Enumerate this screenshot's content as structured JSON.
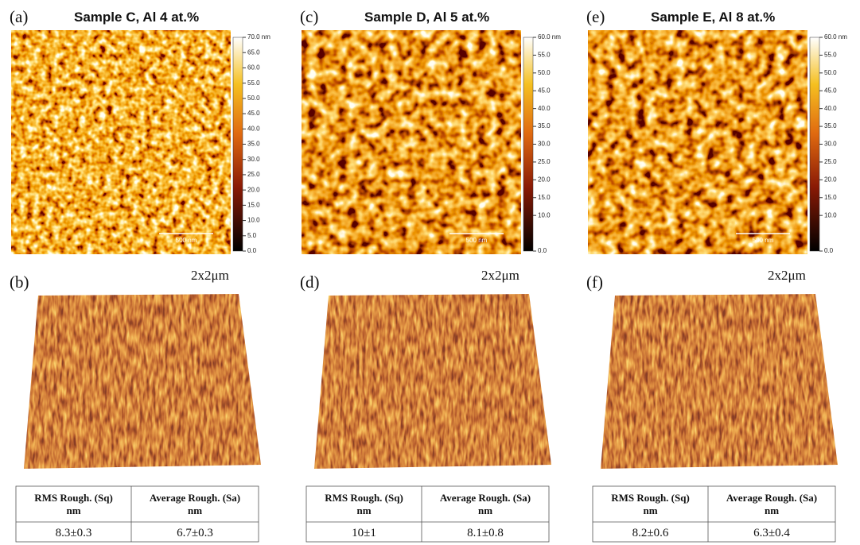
{
  "panels": [
    {
      "top_label": "(a)",
      "title": "Sample C, Al 4 at.%",
      "colorbar_ticks": [
        {
          "value": 70,
          "label": "70.0 nm"
        },
        {
          "value": 65,
          "label": "65.0"
        },
        {
          "value": 60,
          "label": "60.0"
        },
        {
          "value": 55,
          "label": "55.0"
        },
        {
          "value": 50,
          "label": "50.0"
        },
        {
          "value": 45,
          "label": "45.0"
        },
        {
          "value": 40,
          "label": "40.0"
        },
        {
          "value": 35,
          "label": "35.0"
        },
        {
          "value": 30,
          "label": "30.0"
        },
        {
          "value": 25,
          "label": "25.0"
        },
        {
          "value": 20,
          "label": "20.0"
        },
        {
          "value": 15,
          "label": "15.0"
        },
        {
          "value": 10,
          "label": "10.0"
        },
        {
          "value": 5,
          "label": "5.0"
        },
        {
          "value": 0,
          "label": "0.0"
        }
      ],
      "scale_bar": "500 nm",
      "bottom_label": "(b)",
      "size_label": "2x2μm",
      "table": {
        "header": [
          [
            "RMS Rough. (Sq)",
            "nm"
          ],
          [
            "Average Rough. (Sa)",
            "nm"
          ]
        ],
        "row": [
          "8.3±0.3",
          "6.7±0.3"
        ]
      }
    },
    {
      "top_label": "(c)",
      "title": "Sample D, Al 5 at.%",
      "colorbar_ticks": [
        {
          "value": 60,
          "label": "60.0 nm"
        },
        {
          "value": 55,
          "label": "55.0"
        },
        {
          "value": 50,
          "label": "50.0"
        },
        {
          "value": 45,
          "label": "45.0"
        },
        {
          "value": 40,
          "label": "40.0"
        },
        {
          "value": 35,
          "label": "35.0"
        },
        {
          "value": 30,
          "label": "30.0"
        },
        {
          "value": 25,
          "label": "25.0"
        },
        {
          "value": 20,
          "label": "20.0"
        },
        {
          "value": 15,
          "label": "15.0"
        },
        {
          "value": 10,
          "label": "10.0"
        },
        {
          "value": 0,
          "label": "0.0"
        }
      ],
      "scale_bar": "500 nm",
      "bottom_label": "(d)",
      "size_label": "2x2μm",
      "table": {
        "header": [
          [
            "RMS Rough. (Sq)",
            "nm"
          ],
          [
            "Average Rough. (Sa)",
            "nm"
          ]
        ],
        "row": [
          "10±1",
          "8.1±0.8"
        ]
      }
    },
    {
      "top_label": "(e)",
      "title": "Sample E, Al 8 at.%",
      "colorbar_ticks": [
        {
          "value": 60,
          "label": "60.0 nm"
        },
        {
          "value": 55,
          "label": "55.0"
        },
        {
          "value": 50,
          "label": "50.0"
        },
        {
          "value": 45,
          "label": "45.0"
        },
        {
          "value": 40,
          "label": "40.0"
        },
        {
          "value": 35,
          "label": "35.0"
        },
        {
          "value": 30,
          "label": "30.0"
        },
        {
          "value": 25,
          "label": "25.0"
        },
        {
          "value": 20,
          "label": "20.0"
        },
        {
          "value": 15,
          "label": "15.0"
        },
        {
          "value": 10,
          "label": "10.0"
        },
        {
          "value": 0,
          "label": "0.0"
        }
      ],
      "scale_bar": "500 nm",
      "bottom_label": "(f)",
      "size_label": "2x2μm",
      "table": {
        "header": [
          [
            "RMS Rough. (Sq)",
            "nm"
          ],
          [
            "Average Rough. (Sa)",
            "nm"
          ]
        ],
        "row": [
          "8.2±0.6",
          "6.3±0.4"
        ]
      }
    }
  ]
}
